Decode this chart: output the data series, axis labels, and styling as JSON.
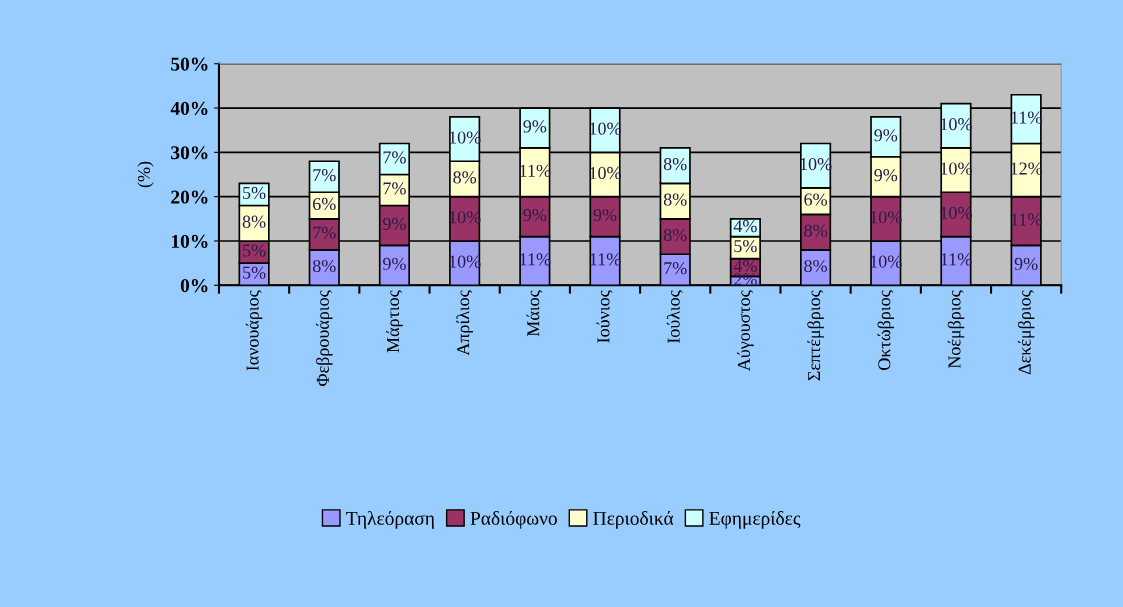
{
  "chart_data": {
    "type": "bar",
    "stacked": true,
    "ylabel": "(%)",
    "categories": [
      "Ιανουάριος",
      "Φεβρουάριος",
      "Μάρτιος",
      "Απρίλιος",
      "Μάιος",
      "Ιούνιος",
      "Ιούλιος",
      "Αύγουστος",
      "Σεπτέμβριος",
      "Οκτώβριος",
      "Νοέμβριος",
      "Δεκέμβριος"
    ],
    "series": [
      {
        "name": "Τηλεόραση",
        "color": "#9999ff",
        "values": [
          5,
          8,
          9,
          10,
          11,
          11,
          7,
          2,
          8,
          10,
          11,
          9
        ],
        "value_labels": [
          "5%",
          "8%",
          "9%",
          "10%",
          "11%",
          "11%",
          "7%",
          "2%",
          "8%",
          "10%",
          "11%",
          "9%"
        ]
      },
      {
        "name": "Ραδιόφωνο",
        "color": "#993366",
        "values": [
          5,
          7,
          9,
          10,
          9,
          9,
          8,
          4,
          8,
          10,
          10,
          11
        ],
        "value_labels": [
          "5%",
          "7%",
          "9%",
          "10%",
          "9%",
          "9%",
          "8%",
          "4%",
          "8%",
          "10%",
          "10%",
          "11%"
        ]
      },
      {
        "name": "Περιοδικά",
        "color": "#ffffcc",
        "values": [
          8,
          6,
          7,
          8,
          11,
          10,
          8,
          5,
          6,
          9,
          10,
          12
        ],
        "value_labels": [
          "8%",
          "6%",
          "7%",
          "8%",
          "11%",
          "10%",
          "8%",
          "5%",
          "6%",
          "9%",
          "10%",
          "12%"
        ]
      },
      {
        "name": "Εφημερίδες",
        "color": "#ccffff",
        "values": [
          5,
          7,
          7,
          10,
          9,
          10,
          8,
          4,
          10,
          9,
          10,
          11
        ],
        "value_labels": [
          "5%",
          "7%",
          "7%",
          "10%",
          "9%",
          "10%",
          "8%",
          "4%",
          "10%",
          "9%",
          "10%",
          "11%"
        ]
      }
    ],
    "ylim": [
      0,
      50
    ],
    "yticks": [
      {
        "value": 0,
        "label": "0%"
      },
      {
        "value": 10,
        "label": "10%"
      },
      {
        "value": 20,
        "label": "20%"
      },
      {
        "value": 30,
        "label": "30%"
      },
      {
        "value": 40,
        "label": "40%"
      },
      {
        "value": 50,
        "label": "50%"
      }
    ],
    "grid": "y",
    "legend": "bottom"
  }
}
